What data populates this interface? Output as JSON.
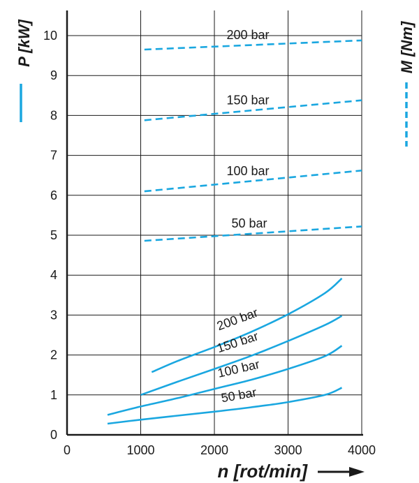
{
  "chart_data": {
    "type": "line",
    "xlabel": "n [rot/min]",
    "ylabel_left": "P [kW]",
    "ylabel_right": "M [Nm]",
    "xlim": [
      0,
      4000
    ],
    "ylim": [
      0,
      10.8
    ],
    "x_ticks": [
      "0",
      "1000",
      "2000",
      "3000",
      "4000"
    ],
    "y_ticks": [
      "0",
      "1",
      "2",
      "3",
      "4",
      "5",
      "6",
      "7",
      "8",
      "9",
      "10"
    ],
    "grid": true,
    "color": "#1aa7e0",
    "torque_series": [
      {
        "name": "200 bar",
        "x": [
          1050,
          4000
        ],
        "y": [
          9.65,
          9.88
        ]
      },
      {
        "name": "150 bar",
        "x": [
          1050,
          4000
        ],
        "y": [
          7.88,
          8.38
        ]
      },
      {
        "name": "100 bar",
        "x": [
          1050,
          4000
        ],
        "y": [
          6.1,
          6.62
        ]
      },
      {
        "name": "50 bar",
        "x": [
          1050,
          4000
        ],
        "y": [
          4.86,
          5.22
        ]
      }
    ],
    "power_series": [
      {
        "name": "200 bar",
        "x": [
          1150,
          1500,
          2000,
          2500,
          3000,
          3500,
          3730
        ],
        "y": [
          1.57,
          1.85,
          2.2,
          2.58,
          3.02,
          3.55,
          3.92
        ]
      },
      {
        "name": "150 bar",
        "x": [
          1000,
          1500,
          2000,
          2500,
          3000,
          3500,
          3730
        ],
        "y": [
          1.0,
          1.33,
          1.65,
          1.98,
          2.35,
          2.75,
          2.98
        ]
      },
      {
        "name": "100 bar",
        "x": [
          550,
          1000,
          1500,
          2000,
          2500,
          3000,
          3500,
          3730
        ],
        "y": [
          0.5,
          0.71,
          0.92,
          1.15,
          1.38,
          1.65,
          1.97,
          2.23
        ]
      },
      {
        "name": "50 bar",
        "x": [
          550,
          1000,
          1500,
          2000,
          2500,
          3000,
          3500,
          3730
        ],
        "y": [
          0.28,
          0.38,
          0.48,
          0.58,
          0.69,
          0.82,
          1.0,
          1.18
        ]
      }
    ]
  }
}
